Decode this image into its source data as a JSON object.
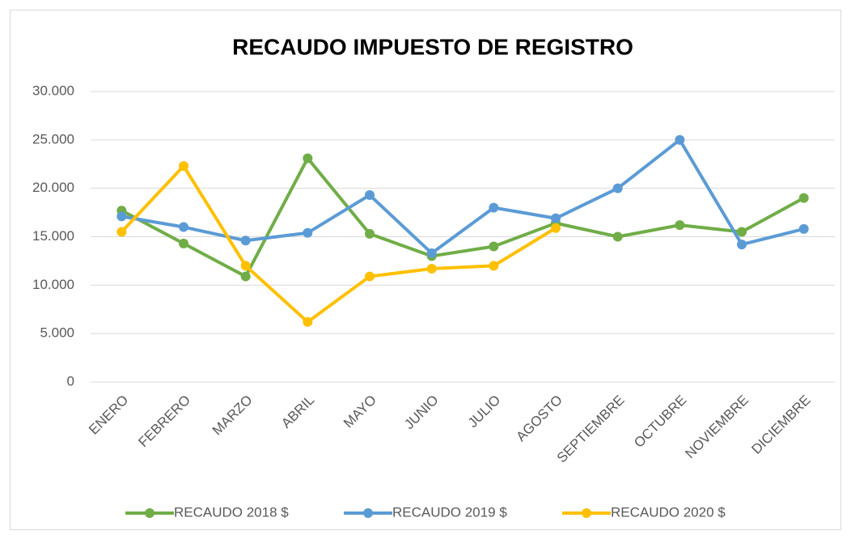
{
  "chart_data": {
    "type": "line",
    "title": "RECAUDO IMPUESTO DE REGISTRO",
    "categories": [
      "ENERO",
      "FEBRERO",
      "MARZO",
      "ABRIL",
      "MAYO",
      "JUNIO",
      "JULIO",
      "AGOSTO",
      "SEPTIEMBRE",
      "OCTUBRE",
      "NOVIEMBRE",
      "DICIEMBRE"
    ],
    "series": [
      {
        "name": "RECAUDO 2018 $",
        "color": "#70ad47",
        "values": [
          17700,
          14300,
          10900,
          23100,
          15300,
          13000,
          14000,
          16400,
          15000,
          16200,
          15500,
          19000
        ]
      },
      {
        "name": "RECAUDO 2019 $",
        "color": "#5b9bd5",
        "values": [
          17100,
          16000,
          14600,
          15400,
          19300,
          13300,
          18000,
          16900,
          20000,
          25000,
          14200,
          15800
        ]
      },
      {
        "name": "RECAUDO 2020 $",
        "color": "#ffc000",
        "values": [
          15500,
          22300,
          12000,
          6200,
          10900,
          11700,
          12000,
          15900,
          null,
          null,
          null,
          null
        ]
      }
    ],
    "ylim": [
      0,
      30000
    ],
    "yticks": [
      0,
      {
        "value": 5000,
        "label": "5.000"
      },
      {
        "value": 10000,
        "label": "10.000"
      },
      {
        "value": 15000,
        "label": "15.000"
      },
      {
        "value": 20000,
        "label": "20.000"
      },
      {
        "value": 25000,
        "label": "25.000"
      },
      {
        "value": 30000,
        "label": "30.000"
      }
    ],
    "grid": true,
    "legend": "bottom"
  }
}
